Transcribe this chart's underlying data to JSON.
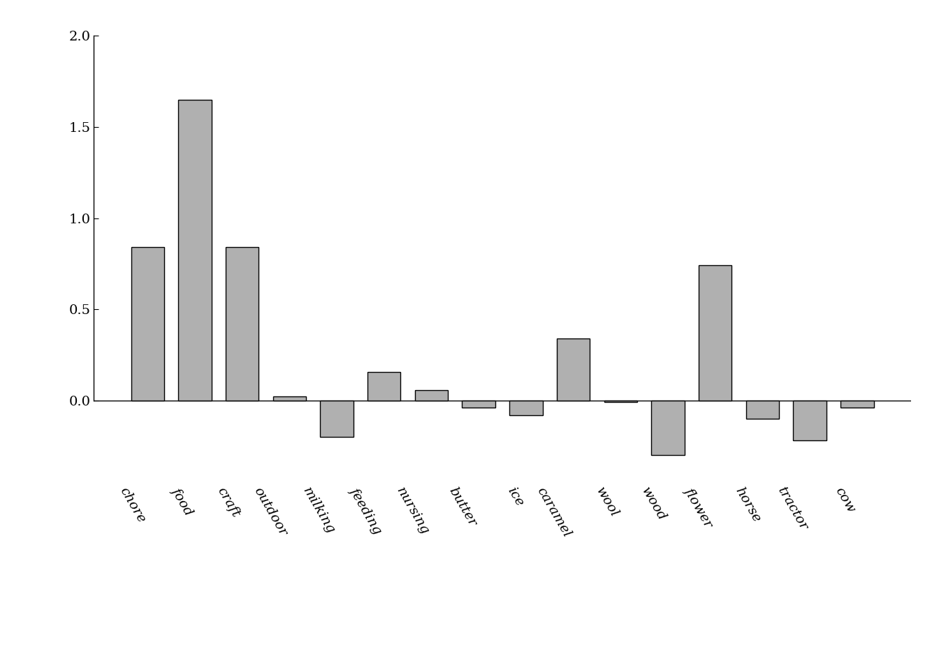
{
  "categories": [
    "chore",
    "food",
    "craft",
    "outdoor",
    "milking",
    "feeding",
    "nursing",
    "butter",
    "ice",
    "caramel",
    "wool",
    "wood",
    "flower",
    "horse",
    "tractor",
    "cow"
  ],
  "values": [
    0.84,
    1.65,
    0.84,
    0.02,
    -0.2,
    0.155,
    0.055,
    -0.04,
    -0.08,
    0.34,
    -0.01,
    -0.3,
    0.74,
    -0.1,
    -0.22,
    -0.04
  ],
  "bar_color": "#b0b0b0",
  "bar_edgecolor": "#000000",
  "background_color": "#ffffff",
  "ylim": [
    -0.45,
    2.05
  ],
  "yticks": [
    0.0,
    0.5,
    1.0,
    1.5,
    2.0
  ],
  "bar_width": 0.7,
  "figsize": [
    13.44,
    9.6
  ],
  "dpi": 100,
  "label_rotation": -60,
  "label_fontsize": 14,
  "tick_fontsize": 14
}
